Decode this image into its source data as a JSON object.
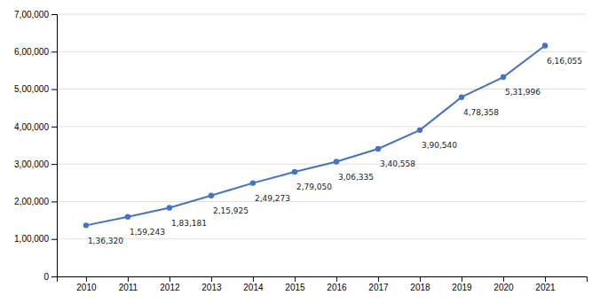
{
  "chart_data": {
    "type": "line",
    "x": [
      2010,
      2011,
      2012,
      2013,
      2014,
      2015,
      2016,
      2017,
      2018,
      2019,
      2020,
      2021
    ],
    "values": [
      136320,
      159243,
      183181,
      215925,
      249273,
      279050,
      306335,
      340558,
      390540,
      478358,
      531996,
      616055
    ],
    "value_labels": [
      "1,36,320",
      "1,59,243",
      "1,83,181",
      "2,15,925",
      "2,49,273",
      "2,79,050",
      "3,06,335",
      "3,40,558",
      "3,90,540",
      "4,78,358",
      "5,31,996",
      "6,16,055"
    ],
    "data_labels": true,
    "color": "#4472C4",
    "marker": "o",
    "xlim": [
      2009.3,
      2022.0
    ],
    "xticks": [
      2010,
      2011,
      2012,
      2013,
      2014,
      2015,
      2016,
      2017,
      2018,
      2019,
      2020,
      2021
    ],
    "ylim": [
      0,
      700000
    ],
    "yticks": [
      0,
      {
        "value": 100000,
        "label": "1,00,000"
      },
      {
        "value": 200000,
        "label": "2,00,000"
      },
      {
        "value": 300000,
        "label": "3,00,000"
      },
      {
        "value": 400000,
        "label": "4,00,000"
      },
      {
        "value": 500000,
        "label": "5,00,000"
      },
      {
        "value": 600000,
        "label": "6,00,000"
      },
      {
        "value": 700000,
        "label": "7,00,000"
      }
    ],
    "grid": true
  }
}
